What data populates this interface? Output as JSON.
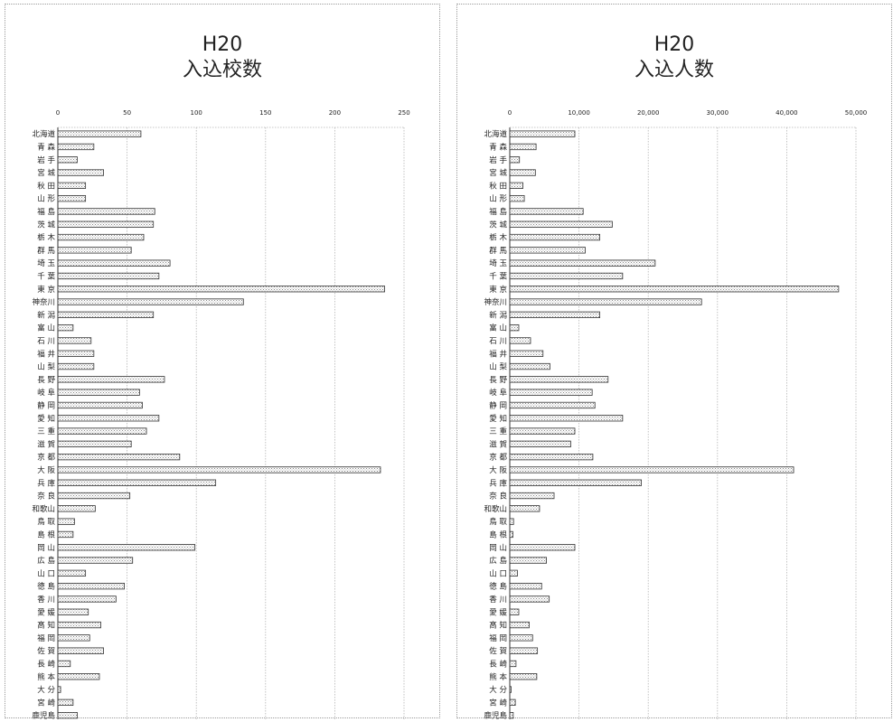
{
  "chart_data": [
    {
      "type": "bar",
      "orientation": "horizontal",
      "title_line1": "H20",
      "title_line2": "入込校数",
      "xlim": [
        0,
        250
      ],
      "ticks": [
        0,
        50,
        100,
        150,
        200,
        250
      ],
      "tick_labels": [
        "0",
        "50",
        "100",
        "150",
        "200",
        "250"
      ],
      "grid": true,
      "categories": [
        "北海道",
        "青 森",
        "岩 手",
        "宮 城",
        "秋 田",
        "山 形",
        "福 島",
        "茨 城",
        "栃 木",
        "群 馬",
        "埼 玉",
        "千 葉",
        "東 京",
        "神奈川",
        "新 潟",
        "富 山",
        "石 川",
        "福 井",
        "山 梨",
        "長 野",
        "岐 阜",
        "静 岡",
        "愛 知",
        "三 重",
        "滋 賀",
        "京 都",
        "大 阪",
        "兵 庫",
        "奈 良",
        "和歌山",
        "鳥 取",
        "島 根",
        "岡 山",
        "広 島",
        "山 口",
        "徳 島",
        "香 川",
        "愛 媛",
        "高 知",
        "福 岡",
        "佐 賀",
        "長 崎",
        "熊 本",
        "大 分",
        "宮 崎",
        "鹿児島"
      ],
      "values": [
        60,
        26,
        14,
        33,
        20,
        20,
        70,
        69,
        62,
        53,
        81,
        73,
        236,
        134,
        69,
        11,
        24,
        26,
        26,
        77,
        59,
        61,
        73,
        64,
        53,
        88,
        233,
        114,
        52,
        27,
        12,
        11,
        99,
        54,
        20,
        48,
        42,
        22,
        31,
        23,
        33,
        9,
        30,
        2,
        11,
        14
      ]
    },
    {
      "type": "bar",
      "orientation": "horizontal",
      "title_line1": "H20",
      "title_line2": "入込人数",
      "xlim": [
        0,
        50000
      ],
      "ticks": [
        0,
        10000,
        20000,
        30000,
        40000,
        50000
      ],
      "tick_labels": [
        "0",
        "10,000",
        "20,000",
        "30,000",
        "40,000",
        "50,000"
      ],
      "grid": true,
      "categories": [
        "北海道",
        "青 森",
        "岩 手",
        "宮 城",
        "秋 田",
        "山 形",
        "福 島",
        "茨 城",
        "栃 木",
        "群 馬",
        "埼 玉",
        "千 葉",
        "東 京",
        "神奈川",
        "新 潟",
        "富 山",
        "石 川",
        "福 井",
        "山 梨",
        "長 野",
        "岐 阜",
        "静 岡",
        "愛 知",
        "三 重",
        "滋 賀",
        "京 都",
        "大 阪",
        "兵 庫",
        "奈 良",
        "和歌山",
        "鳥 取",
        "島 根",
        "岡 山",
        "広 島",
        "山 口",
        "徳 島",
        "香 川",
        "愛 媛",
        "高 知",
        "福 岡",
        "佐 賀",
        "長 崎",
        "熊 本",
        "大 分",
        "宮 崎",
        "鹿児島"
      ],
      "values": [
        9400,
        3800,
        1400,
        3700,
        1900,
        2100,
        10600,
        14800,
        13000,
        10900,
        21000,
        16300,
        47500,
        27700,
        13000,
        1300,
        3000,
        4800,
        5800,
        14200,
        11900,
        12300,
        16300,
        9400,
        8800,
        12000,
        41000,
        19000,
        6400,
        4300,
        550,
        450,
        9400,
        5300,
        1100,
        4600,
        5700,
        1300,
        2800,
        3300,
        4000,
        900,
        3900,
        200,
        800,
        500
      ]
    }
  ]
}
